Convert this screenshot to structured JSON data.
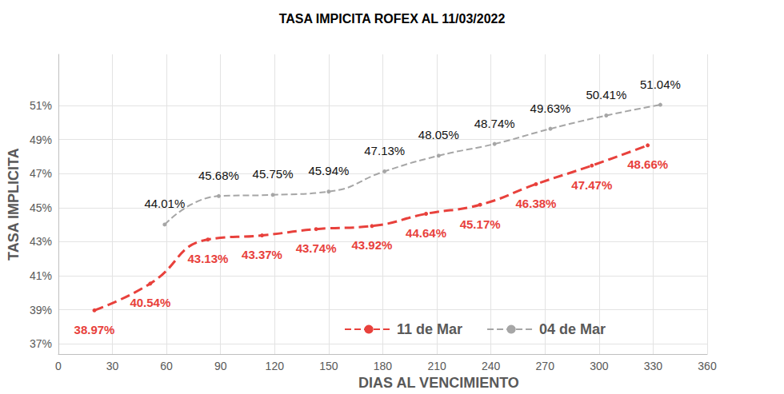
{
  "chart_data": {
    "type": "line",
    "title": "TASA IMPICITA ROFEX AL 11/03/2022",
    "x_label": "DIAS AL VENCIMIENTO",
    "y_label": "TASA IMPLICITA",
    "xlim": [
      0,
      360
    ],
    "xticks": [
      0,
      30,
      60,
      90,
      120,
      150,
      180,
      210,
      240,
      270,
      300,
      330,
      360
    ],
    "ylim": [
      36.4,
      54
    ],
    "yticks": [
      {
        "value": 37,
        "label": "37%"
      },
      {
        "value": 39,
        "label": "39%"
      },
      {
        "value": 41,
        "label": "41%"
      },
      {
        "value": 43,
        "label": "43%"
      },
      {
        "value": 45,
        "label": "45%"
      },
      {
        "value": 47,
        "label": "47%"
      },
      {
        "value": 49,
        "label": "49%"
      },
      {
        "value": 51,
        "label": "51%"
      }
    ],
    "grid": true,
    "legend": "bottom",
    "data_labels": true,
    "series": [
      {
        "name": "11 de Mar",
        "color": "#e8413c",
        "marker": "circle",
        "line_style": "dashed",
        "x": [
          20,
          51,
          83,
          113,
          143,
          174,
          204,
          234,
          265,
          296,
          327
        ],
        "values": [
          38.97,
          40.54,
          43.13,
          43.37,
          43.74,
          43.92,
          44.64,
          45.17,
          46.38,
          47.47,
          48.66
        ],
        "value_labels": [
          "38.97%",
          "40.54%",
          "43.13%",
          "43.37%",
          "43.74%",
          "43.92%",
          "44.64%",
          "45.17%",
          "46.38%",
          "47.47%",
          "48.66%"
        ]
      },
      {
        "name": "04 de Mar",
        "color": "#a6a6a6",
        "marker": "circle",
        "line_style": "dashed",
        "x": [
          59,
          89,
          119,
          150,
          181,
          211,
          242,
          273,
          304,
          334
        ],
        "values": [
          44.01,
          45.68,
          45.75,
          45.94,
          47.13,
          48.05,
          48.74,
          49.63,
          50.41,
          51.04
        ],
        "value_labels": [
          "44.01%",
          "45.68%",
          "45.75%",
          "45.94%",
          "47.13%",
          "48.05%",
          "48.74%",
          "49.63%",
          "50.41%",
          "51.04%"
        ]
      }
    ]
  }
}
